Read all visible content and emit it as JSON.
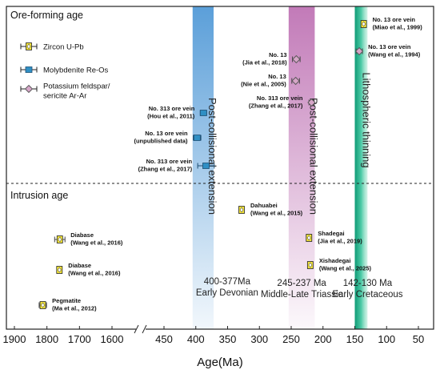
{
  "chart_data": {
    "type": "scatter",
    "xlabel": "Age(Ma)",
    "x_ticks_left": [
      "1900",
      "1800",
      "1700",
      "1600"
    ],
    "x_ticks_right": [
      "450",
      "400",
      "350",
      "300",
      "250",
      "200",
      "150",
      "100",
      "50"
    ],
    "xlim_left": [
      1900,
      1575
    ],
    "xlim_right": [
      470,
      30
    ],
    "sections": {
      "upper": "Ore-forming age",
      "lower": "Intrusion age"
    },
    "legend": [
      {
        "method": "zircon",
        "label": "Zircon U-Pb",
        "color": "#f2e33a"
      },
      {
        "method": "molybdenite",
        "label": "Molybdenite Re-Os",
        "color": "#2f8fc4"
      },
      {
        "method": "kfs",
        "label": "Potassium feldspar/\nsericite Ar-Ar",
        "color": "#d6a6c8"
      }
    ],
    "bands": [
      {
        "from": 405,
        "to": 372,
        "color": "#6aa8dc",
        "range_label": "400-377Ma",
        "period_label": "Early Devonian",
        "vertical_label": "Post-collisional extension"
      },
      {
        "from": 254,
        "to": 213,
        "color": "#c98ec0",
        "range_label": "245-237 Ma",
        "period_label": "Middle-Late Triassic",
        "vertical_label": "Post-collisional extension"
      },
      {
        "from": 150,
        "to": 130,
        "color": "#1fae8a",
        "range_label": "142-130 Ma",
        "period_label": "Early Cretaceous",
        "vertical_label": "Lithospheric thinning"
      }
    ],
    "points": [
      {
        "group": "ore",
        "method": "zircon",
        "age": 136,
        "err": 3,
        "label": "No. 13 ore vein\n(Miao et al., 1999)",
        "label_side": "right"
      },
      {
        "group": "ore",
        "method": "kfs",
        "age": 143,
        "err": 5,
        "label": "No. 13 ore vein\n(Wang et al., 1994)",
        "label_side": "right"
      },
      {
        "group": "ore",
        "method": "kfs",
        "age": 242,
        "err": 6,
        "label": "No. 13\n(Jia et al., 2018)",
        "label_side": "left"
      },
      {
        "group": "ore",
        "method": "kfs",
        "age": 243,
        "err": 6,
        "label": "No. 13\n(Nie et al., 2005)",
        "label_side": "left"
      },
      {
        "group": "ore",
        "method": "kfs",
        "age": 218,
        "err": 4,
        "label": "No. 313 ore vein\n(Zhang et al., 2017)",
        "label_side": "left"
      },
      {
        "group": "ore",
        "method": "molybdenite",
        "age": 388,
        "err": 5,
        "label": "No. 313 ore vein\n(Hou et al., 2011)",
        "label_side": "left"
      },
      {
        "group": "ore",
        "method": "molybdenite",
        "age": 398,
        "err": 6,
        "label": "No. 13 ore vein\n(unpublished data)",
        "label_side": "left"
      },
      {
        "group": "ore",
        "method": "molybdenite",
        "age": 384,
        "err": 13,
        "label": "No. 313 ore vein\n(Zhang et al., 2017)",
        "label_side": "left"
      },
      {
        "group": "intrusion",
        "method": "zircon",
        "age": 328,
        "err": 3,
        "label": "Dahuabei\n(Wang et al., 2015)",
        "label_side": "right"
      },
      {
        "group": "intrusion",
        "method": "zircon",
        "age": 222,
        "err": 3,
        "label": "Shadegai\n(Jia et al., 2019)",
        "label_side": "right"
      },
      {
        "group": "intrusion",
        "method": "zircon",
        "age": 220,
        "err": 3,
        "label": "Xishadegai\n(Wang et al., 2025)",
        "label_side": "right"
      },
      {
        "group": "intrusion",
        "method": "zircon",
        "age": 1777,
        "err": 14,
        "label": "Diabase\n(Wang et al., 2016)",
        "label_side": "right"
      },
      {
        "group": "intrusion",
        "method": "zircon",
        "age": 1778,
        "err": 5,
        "label": "Diabase\n(Wang et al., 2016)",
        "label_side": "right"
      },
      {
        "group": "intrusion",
        "method": "zircon",
        "age": 1823,
        "err": 10,
        "label": "Pegmatite\n(Ma et al., 2012)",
        "label_side": "right"
      }
    ]
  }
}
